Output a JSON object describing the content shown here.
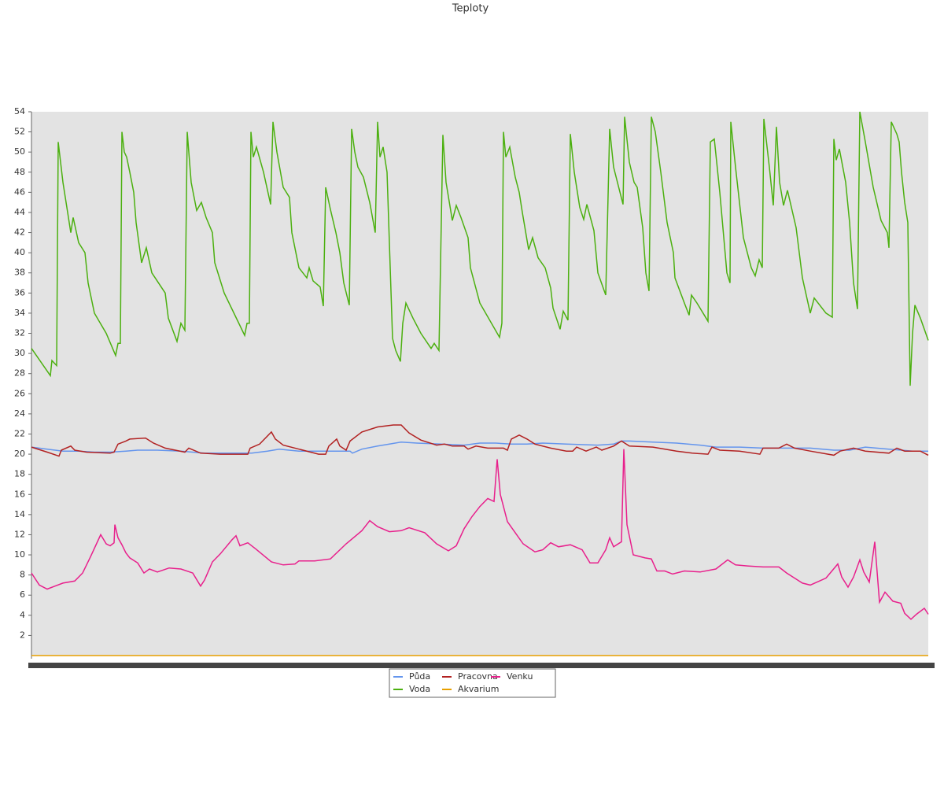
{
  "chart_data": {
    "type": "line",
    "title": "Teploty",
    "xlim": [
      40,
      1180
    ],
    "ylim": [
      0,
      54
    ],
    "yticks": [
      2,
      4,
      6,
      8,
      10,
      12,
      14,
      16,
      18,
      20,
      22,
      24,
      26,
      28,
      30,
      32,
      34,
      36,
      38,
      40,
      42,
      44,
      46,
      48,
      50,
      52,
      54
    ],
    "legend": "bottom",
    "series": [
      {
        "name": "Půda",
        "color": "#6495ed",
        "x": [
          40,
          60,
          80,
          100,
          120,
          140,
          160,
          175,
          200,
          230,
          260,
          290,
          320,
          340,
          355,
          380,
          410,
          445,
          448,
          460,
          480,
          495,
          510,
          530,
          560,
          590,
          610,
          630,
          650,
          670,
          690,
          720,
          760,
          780,
          790,
          800,
          830,
          860,
          890,
          910,
          940,
          970,
          1000,
          1030,
          1060,
          1080,
          1100,
          1130,
          1160,
          1180
        ],
        "values": [
          20.7,
          20.5,
          20.3,
          20.3,
          20.2,
          20.2,
          20.3,
          20.4,
          20.4,
          20.3,
          20.1,
          20.1,
          20.1,
          20.3,
          20.5,
          20.3,
          20.3,
          20.3,
          20.1,
          20.5,
          20.8,
          21,
          21.2,
          21.1,
          21,
          20.9,
          21.1,
          21.1,
          21,
          21,
          21.1,
          21,
          20.9,
          21,
          21.3,
          21.3,
          21.2,
          21.1,
          20.9,
          20.7,
          20.7,
          20.6,
          20.6,
          20.6,
          20.4,
          20.4,
          20.7,
          20.5,
          20.3,
          20.3
        ]
      },
      {
        "name": "Voda",
        "color": "#4cb010",
        "x": [
          40,
          64,
          66,
          72,
          74,
          80,
          90,
          93,
          100,
          108,
          112,
          120,
          135,
          147,
          150,
          153,
          155,
          158,
          161,
          165,
          170,
          173,
          180,
          186,
          193,
          210,
          214,
          225,
          230,
          235,
          238,
          243,
          250,
          256,
          262,
          270,
          273,
          285,
          311,
          314,
          317,
          319,
          322,
          326,
          335,
          344,
          347,
          352,
          360,
          368,
          371,
          380,
          390,
          393,
          398,
          407,
          411,
          414,
          420,
          427,
          432,
          437,
          444,
          447,
          451,
          455,
          462,
          470,
          477,
          480,
          483,
          487,
          492,
          499,
          503,
          509,
          512,
          516,
          525,
          535,
          548,
          552,
          558,
          563,
          567,
          575,
          580,
          586,
          595,
          598,
          610,
          635,
          638,
          640,
          643,
          648,
          655,
          660,
          664,
          672,
          677,
          684,
          693,
          700,
          703,
          712,
          716,
          722,
          725,
          730,
          737,
          742,
          746,
          755,
          760,
          770,
          775,
          780,
          792,
          794,
          800,
          806,
          810,
          817,
          821,
          825,
          828,
          833,
          840,
          848,
          856,
          858,
          870,
          876,
          879,
          886,
          900,
          903,
          908,
          915,
          924,
          928,
          929,
          935,
          945,
          955,
          960,
          965,
          969,
          971,
          978,
          983,
          987,
          991,
          996,
          1001,
          1012,
          1020,
          1030,
          1035,
          1050,
          1058,
          1060,
          1063,
          1067,
          1075,
          1080,
          1085,
          1090,
          1093,
          1100,
          1110,
          1120,
          1128,
          1130,
          1133,
          1140,
          1143,
          1146,
          1150,
          1154,
          1157,
          1160,
          1163,
          1170,
          1180
        ],
        "values": [
          30.5,
          27.8,
          29.3,
          28.8,
          51,
          47,
          42,
          43.5,
          41,
          40,
          37,
          34,
          32,
          29.8,
          31,
          31,
          52,
          50,
          49.5,
          48,
          46,
          43,
          39,
          40.5,
          38,
          36,
          33.5,
          31.2,
          33,
          32.3,
          52,
          47,
          44.2,
          45,
          43.5,
          42,
          39,
          36,
          31.8,
          33,
          33,
          52,
          49.5,
          50.5,
          48,
          44.8,
          53,
          50,
          46.5,
          45.5,
          42,
          38.5,
          37.5,
          38.5,
          37.2,
          36.6,
          34.7,
          46.5,
          44.3,
          42,
          40,
          37,
          34.8,
          52.3,
          50,
          48.5,
          47.5,
          45,
          42,
          53,
          49.5,
          50.5,
          48,
          31.5,
          30.3,
          29.2,
          33,
          35,
          33.5,
          32,
          30.5,
          31,
          30.3,
          51.7,
          47,
          43.2,
          44.7,
          43.5,
          41.5,
          38.5,
          35,
          31.6,
          33,
          52,
          49.5,
          50.5,
          47.5,
          46,
          44,
          40.3,
          41.5,
          39.5,
          38.5,
          36.5,
          34.5,
          32.4,
          34.2,
          33.3,
          51.8,
          48,
          44.5,
          43.3,
          44.8,
          42.2,
          38,
          35.8,
          52.3,
          48.5,
          44.8,
          53.5,
          49,
          47,
          46.5,
          42.5,
          38,
          36.2,
          53.5,
          52,
          48,
          43,
          40,
          37.5,
          35,
          33.8,
          35.8,
          35,
          33.2,
          51,
          51.3,
          46,
          38,
          37,
          53,
          48.5,
          41.5,
          38.5,
          37.7,
          39.3,
          38.5,
          53.3,
          48.5,
          44.7,
          52.5,
          47,
          44.7,
          46.2,
          42.5,
          37.5,
          34,
          35.5,
          34,
          33.6,
          51.3,
          49.2,
          50.3,
          47,
          43,
          37,
          34.4,
          54,
          51,
          46.5,
          43.2,
          42,
          40.5,
          53,
          51.8,
          51,
          48,
          45,
          43,
          26.8,
          32,
          34.8,
          33.5,
          31.3
        ]
      },
      {
        "name": "Pracovna",
        "color": "#b22222",
        "x": [
          40,
          60,
          75,
          78,
          90,
          95,
          110,
          140,
          145,
          150,
          160,
          165,
          185,
          195,
          210,
          235,
          240,
          255,
          280,
          315,
          318,
          330,
          345,
          350,
          360,
          380,
          405,
          414,
          418,
          428,
          432,
          440,
          445,
          460,
          480,
          500,
          510,
          520,
          535,
          555,
          565,
          575,
          590,
          595,
          605,
          620,
          640,
          645,
          650,
          660,
          670,
          680,
          700,
          720,
          728,
          733,
          745,
          758,
          765,
          780,
          790,
          800,
          830,
          860,
          880,
          900,
          905,
          915,
          940,
          966,
          970,
          990,
          1000,
          1010,
          1030,
          1060,
          1068,
          1085,
          1100,
          1130,
          1140,
          1150,
          1170,
          1180
        ],
        "values": [
          20.7,
          20.2,
          19.8,
          20.4,
          20.8,
          20.4,
          20.2,
          20.1,
          20.2,
          21,
          21.3,
          21.5,
          21.6,
          21.1,
          20.6,
          20.2,
          20.6,
          20.1,
          20,
          20,
          20.6,
          21,
          22.2,
          21.5,
          20.9,
          20.5,
          20,
          20,
          20.8,
          21.5,
          20.8,
          20.4,
          21.3,
          22.2,
          22.7,
          22.9,
          22.9,
          22.1,
          21.4,
          20.9,
          21,
          20.8,
          20.8,
          20.5,
          20.8,
          20.6,
          20.6,
          20.4,
          21.5,
          21.9,
          21.5,
          21,
          20.6,
          20.3,
          20.3,
          20.7,
          20.3,
          20.7,
          20.4,
          20.8,
          21.3,
          20.8,
          20.7,
          20.3,
          20.1,
          20,
          20.7,
          20.4,
          20.3,
          20,
          20.6,
          20.6,
          21,
          20.6,
          20.3,
          19.9,
          20.3,
          20.6,
          20.3,
          20.1,
          20.6,
          20.3,
          20.3,
          19.9
        ]
      },
      {
        "name": "Akvarium",
        "color": "#e8a000",
        "x": [
          40,
          1180
        ],
        "values": [
          0,
          0
        ]
      },
      {
        "name": "Venku",
        "color": "#e8208c",
        "x": [
          40,
          50,
          60,
          70,
          80,
          95,
          105,
          115,
          128,
          135,
          140,
          145,
          146,
          150,
          155,
          160,
          165,
          175,
          183,
          190,
          200,
          215,
          230,
          245,
          255,
          260,
          270,
          280,
          295,
          300,
          305,
          315,
          325,
          345,
          360,
          375,
          380,
          400,
          420,
          440,
          460,
          470,
          480,
          495,
          510,
          520,
          540,
          555,
          570,
          580,
          590,
          600,
          610,
          620,
          628,
          632,
          636,
          645,
          655,
          665,
          680,
          690,
          700,
          710,
          725,
          740,
          750,
          760,
          770,
          775,
          780,
          790,
          793,
          797,
          805,
          820,
          828,
          835,
          845,
          855,
          870,
          890,
          910,
          925,
          935,
          950,
          970,
          990,
          1000,
          1020,
          1030,
          1050,
          1065,
          1070,
          1078,
          1085,
          1093,
          1098,
          1105,
          1112,
          1118,
          1125,
          1135,
          1145,
          1150,
          1158,
          1165,
          1175,
          1180
        ],
        "values": [
          8.2,
          7,
          6.6,
          6.9,
          7.2,
          7.4,
          8.2,
          9.8,
          12,
          11.1,
          10.9,
          11.2,
          13,
          11.7,
          11,
          10.2,
          9.7,
          9.2,
          8.2,
          8.6,
          8.3,
          8.7,
          8.6,
          8.2,
          6.9,
          7.5,
          9.3,
          10.1,
          11.5,
          11.9,
          10.9,
          11.2,
          10.6,
          9.3,
          9,
          9.1,
          9.4,
          9.4,
          9.6,
          11.1,
          12.4,
          13.4,
          12.8,
          12.3,
          12.4,
          12.7,
          12.2,
          11.1,
          10.4,
          10.9,
          12.6,
          13.8,
          14.8,
          15.6,
          15.3,
          19.5,
          16,
          13.3,
          12.2,
          11.1,
          10.3,
          10.5,
          11.2,
          10.8,
          11,
          10.5,
          9.2,
          9.2,
          10.5,
          11.7,
          10.8,
          11.3,
          20.5,
          13,
          10,
          9.7,
          9.6,
          8.4,
          8.4,
          8.1,
          8.4,
          8.3,
          8.6,
          9.5,
          9,
          8.9,
          8.8,
          8.8,
          8.2,
          7.2,
          7,
          7.7,
          9.1,
          7.8,
          6.8,
          7.8,
          9.5,
          8.3,
          7.3,
          11.3,
          5.3,
          6.3,
          5.4,
          5.2,
          4.2,
          3.6,
          4.1,
          4.7,
          4.1
        ]
      }
    ]
  }
}
